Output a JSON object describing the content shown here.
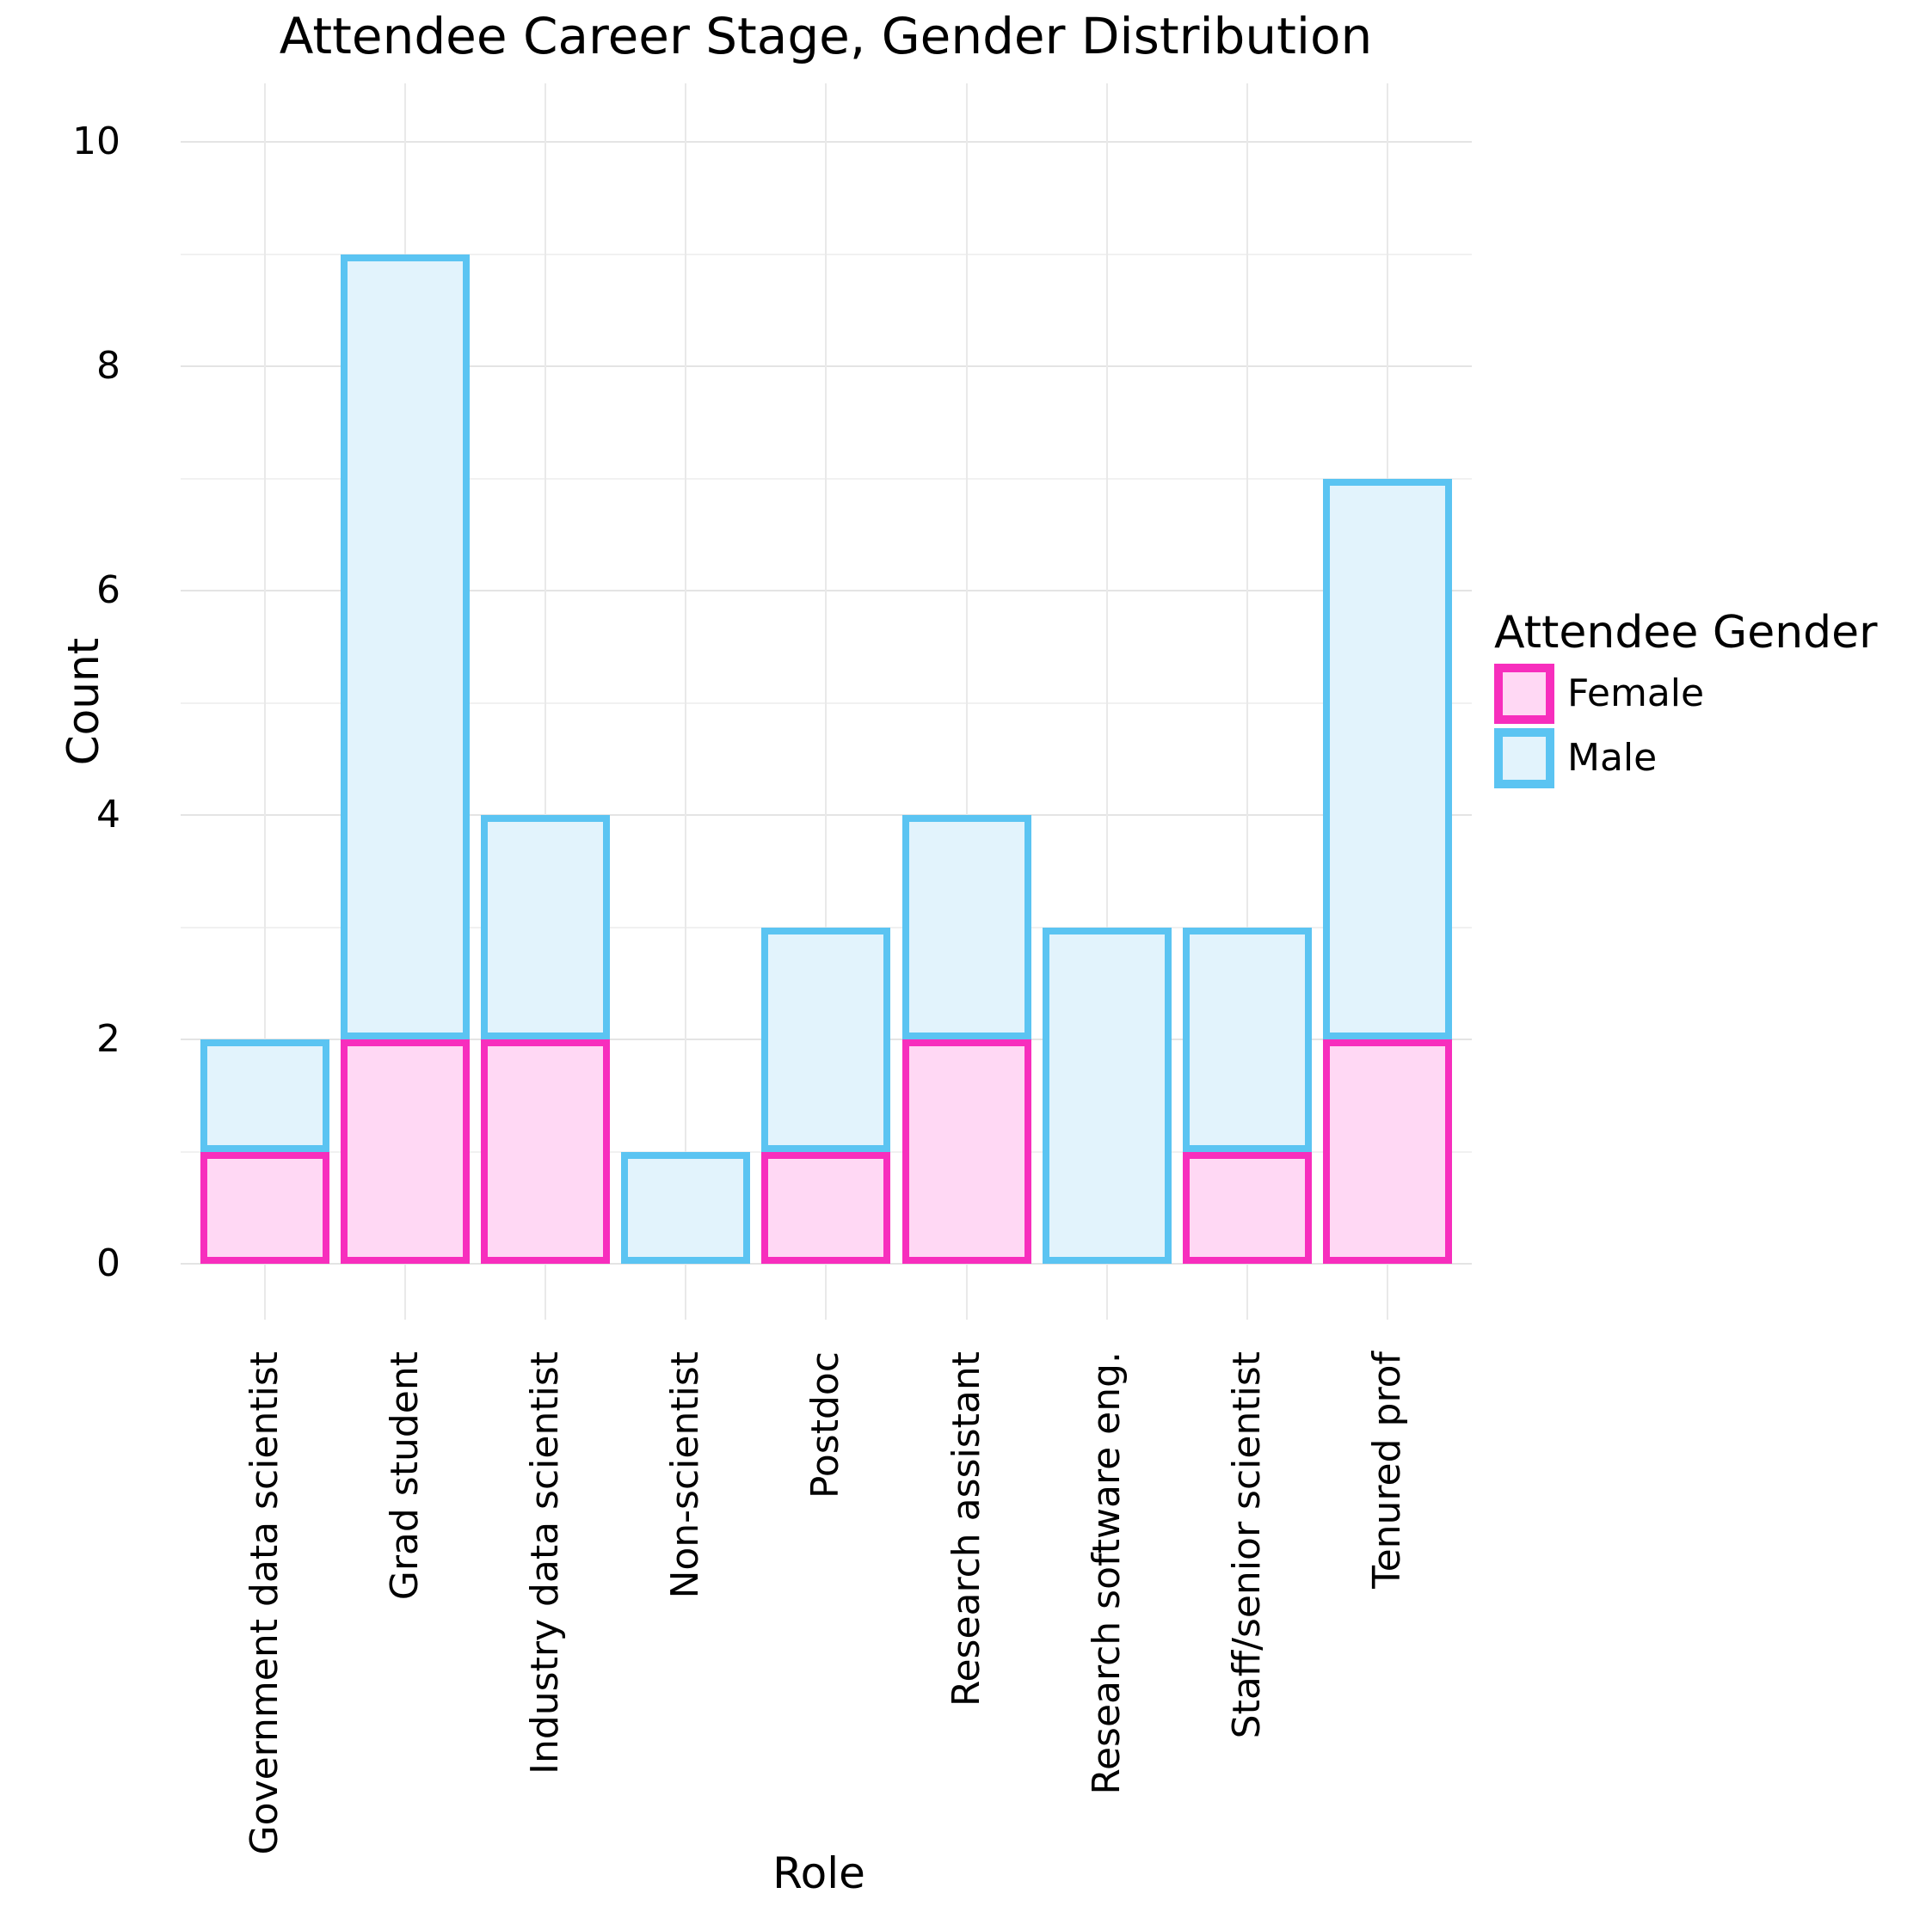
{
  "chart_data": {
    "type": "bar",
    "stacked": true,
    "title": "Attendee Career Stage, Gender Distribution",
    "xlabel": "Role",
    "ylabel": "Count",
    "categories": [
      "Government data scientist",
      "Grad student",
      "Industry data scientist",
      "Non-scientist",
      "Postdoc",
      "Research assistant",
      "Research software eng.",
      "Staff/senior scientist",
      "Tenured prof"
    ],
    "series": [
      {
        "name": "Female",
        "fill": "#FFD8F4",
        "stroke": "#F72EBD",
        "values": [
          1,
          2,
          2,
          0,
          1,
          2,
          0,
          1,
          2
        ]
      },
      {
        "name": "Male",
        "fill": "#E2F3FC",
        "stroke": "#5BC4F2",
        "values": [
          1,
          7,
          2,
          1,
          2,
          2,
          3,
          2,
          5
        ]
      }
    ],
    "totals": [
      2,
      9,
      4,
      1,
      3,
      4,
      3,
      3,
      7
    ],
    "ylim": [
      0,
      10
    ],
    "yticks": [
      0,
      2,
      4,
      6,
      8,
      10
    ],
    "grid": {
      "show": true,
      "major_color": "#e4e4e4",
      "minor_color": "#f1f1f1",
      "vertical_color": "#e9e9e9"
    },
    "legend": {
      "title": "Attendee Gender",
      "position": "right",
      "entries": [
        "Female",
        "Male"
      ]
    },
    "background": "#ffffff",
    "text_color": "#000000"
  }
}
